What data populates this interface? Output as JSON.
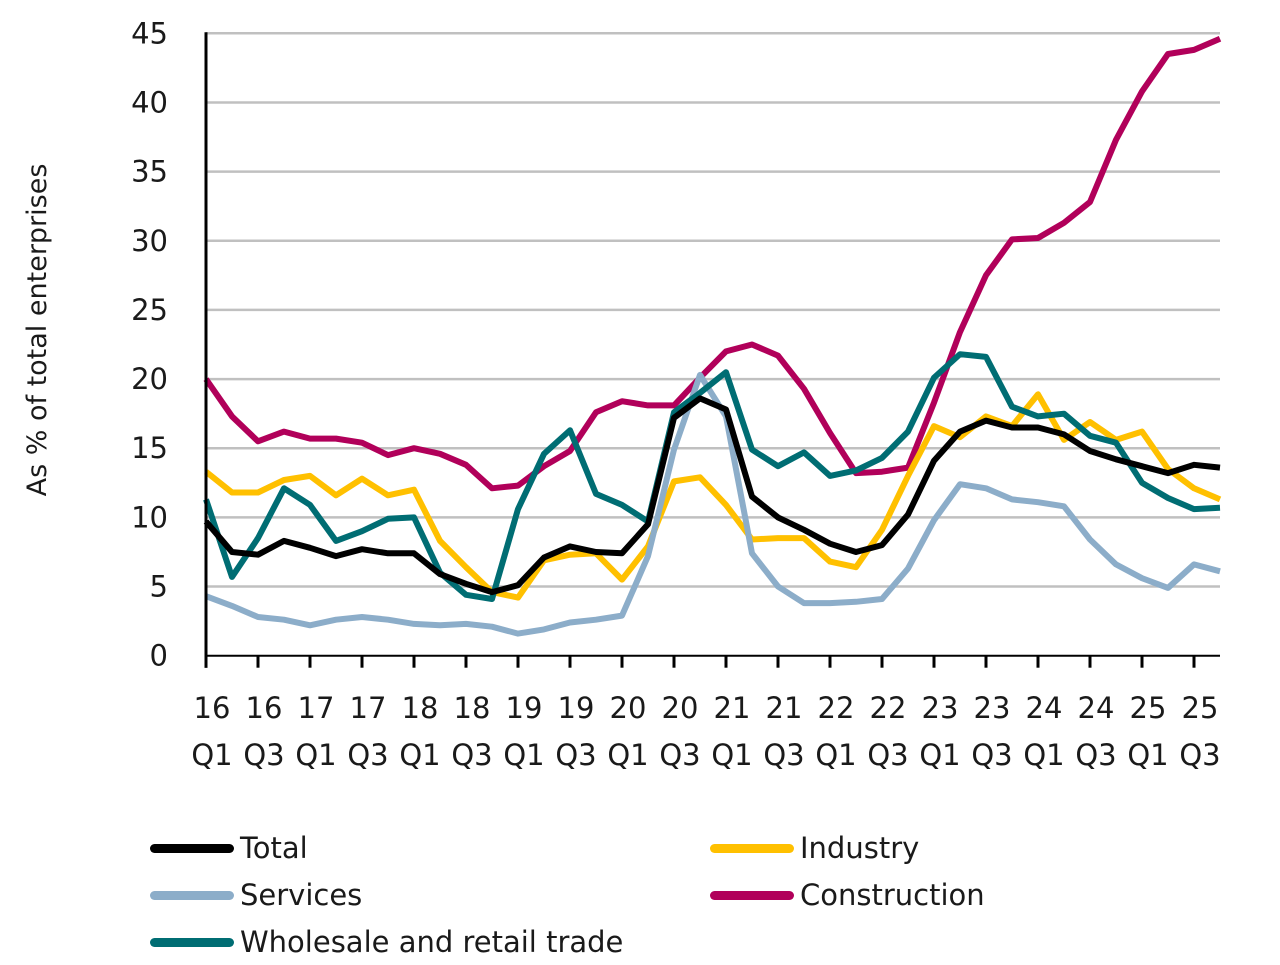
{
  "chart_data": {
    "type": "line",
    "title": "",
    "xlabel": "",
    "ylabel": "As % of total enterprises",
    "ylim": [
      0,
      45
    ],
    "yticks": [
      0,
      5,
      10,
      15,
      20,
      25,
      30,
      35,
      40,
      45
    ],
    "grid": true,
    "legend_position": "bottom",
    "x": [
      "16Q1",
      "16Q2",
      "16Q3",
      "16Q4",
      "17Q1",
      "17Q2",
      "17Q3",
      "17Q4",
      "18Q1",
      "18Q2",
      "18Q3",
      "18Q4",
      "19Q1",
      "19Q2",
      "19Q3",
      "19Q4",
      "20Q1",
      "20Q2",
      "20Q3",
      "20Q4",
      "21Q1",
      "21Q2",
      "21Q3",
      "21Q4",
      "22Q1",
      "22Q2",
      "22Q3",
      "22Q4",
      "23Q1",
      "23Q2",
      "23Q3",
      "23Q4",
      "24Q1",
      "24Q2",
      "24Q3",
      "24Q4",
      "25Q1",
      "25Q2",
      "25Q3",
      "25Q4"
    ],
    "xtick_labels": [
      {
        "year": "16",
        "quarter": "Q1"
      },
      {
        "year": "16",
        "quarter": "Q3"
      },
      {
        "year": "17",
        "quarter": "Q1"
      },
      {
        "year": "17",
        "quarter": "Q3"
      },
      {
        "year": "18",
        "quarter": "Q1"
      },
      {
        "year": "18",
        "quarter": "Q3"
      },
      {
        "year": "19",
        "quarter": "Q1"
      },
      {
        "year": "19",
        "quarter": "Q3"
      },
      {
        "year": "20",
        "quarter": "Q1"
      },
      {
        "year": "20",
        "quarter": "Q3"
      },
      {
        "year": "21",
        "quarter": "Q1"
      },
      {
        "year": "21",
        "quarter": "Q3"
      },
      {
        "year": "22",
        "quarter": "Q1"
      },
      {
        "year": "22",
        "quarter": "Q3"
      },
      {
        "year": "23",
        "quarter": "Q1"
      },
      {
        "year": "23",
        "quarter": "Q3"
      },
      {
        "year": "24",
        "quarter": "Q1"
      },
      {
        "year": "24",
        "quarter": "Q3"
      },
      {
        "year": "25",
        "quarter": "Q1"
      },
      {
        "year": "25",
        "quarter": "Q3"
      }
    ],
    "series": [
      {
        "name": "Construction",
        "color": "#b1005a",
        "values": [
          20.0,
          17.3,
          15.5,
          16.2,
          15.7,
          15.7,
          15.4,
          14.5,
          15.0,
          14.6,
          13.8,
          12.1,
          12.3,
          13.7,
          14.8,
          17.6,
          18.4,
          18.1,
          18.1,
          20.1,
          22.0,
          22.5,
          21.7,
          19.3,
          16.1,
          13.2,
          13.3,
          13.6,
          18.3,
          23.4,
          27.5,
          30.1,
          30.2,
          31.3,
          32.8,
          37.3,
          40.8,
          43.5,
          43.8,
          44.6
        ]
      },
      {
        "name": "Industry",
        "color": "#ffc000",
        "values": [
          13.3,
          11.8,
          11.8,
          12.7,
          13.0,
          11.6,
          12.8,
          11.6,
          12.0,
          8.3,
          6.4,
          4.6,
          4.2,
          6.9,
          7.3,
          7.4,
          5.5,
          7.9,
          12.6,
          12.9,
          10.9,
          8.4,
          8.5,
          8.5,
          6.8,
          6.4,
          9.1,
          13.0,
          16.6,
          15.8,
          17.3,
          16.6,
          18.9,
          15.6,
          16.9,
          15.6,
          16.2,
          13.5,
          12.1,
          11.3
        ]
      },
      {
        "name": "Services",
        "color": "#8cadc9",
        "values": [
          4.3,
          3.6,
          2.8,
          2.6,
          2.2,
          2.6,
          2.8,
          2.6,
          2.3,
          2.2,
          2.3,
          2.1,
          1.6,
          1.9,
          2.4,
          2.6,
          2.9,
          7.2,
          14.9,
          20.3,
          17.3,
          7.4,
          5.0,
          3.8,
          3.8,
          3.9,
          4.1,
          6.3,
          9.8,
          12.4,
          12.1,
          11.3,
          11.1,
          10.8,
          8.4,
          6.6,
          5.6,
          4.9,
          6.6,
          6.1
        ]
      },
      {
        "name": "Wholesale and retail trade",
        "color": "#006d73",
        "values": [
          11.3,
          5.7,
          8.5,
          12.1,
          10.9,
          8.3,
          9.0,
          9.9,
          10.0,
          6.0,
          4.4,
          4.1,
          10.6,
          14.6,
          16.3,
          11.7,
          10.9,
          9.7,
          17.6,
          19.0,
          20.5,
          14.9,
          13.7,
          14.7,
          13.0,
          13.4,
          14.3,
          16.2,
          20.1,
          21.8,
          21.6,
          18.0,
          17.3,
          17.5,
          15.9,
          15.4,
          12.5,
          11.4,
          10.6,
          10.7
        ]
      },
      {
        "name": "Total",
        "color": "#000000",
        "values": [
          9.7,
          7.5,
          7.3,
          8.3,
          7.8,
          7.2,
          7.7,
          7.4,
          7.4,
          5.9,
          5.2,
          4.6,
          5.1,
          7.1,
          7.9,
          7.5,
          7.4,
          9.5,
          17.2,
          18.6,
          17.8,
          11.5,
          10.0,
          9.1,
          8.1,
          7.5,
          8.0,
          10.2,
          14.1,
          16.2,
          17.0,
          16.5,
          16.5,
          16.0,
          14.8,
          14.2,
          13.7,
          13.2,
          13.8,
          13.6
        ]
      }
    ],
    "legend": [
      {
        "name": "Total",
        "color": "#000000"
      },
      {
        "name": "Industry",
        "color": "#ffc000"
      },
      {
        "name": "Services",
        "color": "#8cadc9"
      },
      {
        "name": "Construction",
        "color": "#b1005a"
      },
      {
        "name": "Wholesale and retail trade",
        "color": "#006d73"
      }
    ]
  }
}
